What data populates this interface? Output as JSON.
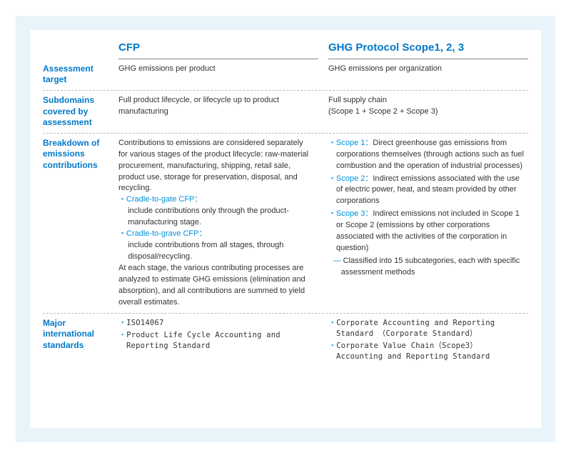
{
  "headers": {
    "cfp": "CFP",
    "ghg": "GHG Protocol Scope1, 2, 3"
  },
  "rows": {
    "assessment": {
      "label": "Assessment target",
      "cfp": "GHG emissions per product",
      "ghg": "GHG emissions per organization"
    },
    "subdomains": {
      "label": "Subdomains covered by assessment",
      "cfp": "Full product lifecycle, or lifecycle up to product manufacturing",
      "ghg_a": "Full supply chain",
      "ghg_b": "(Scope 1 + Scope 2 + Scope 3)"
    },
    "breakdown": {
      "label": "Breakdown of emissions contributions",
      "cfp_intro": "Contributions to emissions are considered separately for various stages of the product lifecycle: raw-material procurement, manufacturing, shipping, retail sale, product use, storage for preservation, disposal, and recycling.",
      "cfp_gate_term": "・Cradle-to-gate CFP：",
      "cfp_gate_desc": "include contributions only through the product-manufacturing stage.",
      "cfp_grave_term": "・Cradle-to-grave CFP：",
      "cfp_grave_desc": "include contributions from all stages, through disposal/recycling.",
      "cfp_outro": "At each stage, the various contributing processes are analyzed to estimate GHG emissions (elimination and absorption), and all contributions are summed to yield overall estimates.",
      "ghg_s1_lead": "・Scope 1：",
      "ghg_s1": "Direct greenhouse gas emissions from corporations themselves (through actions such as fuel combustion and the operation of industrial processes)",
      "ghg_s2_lead": "・Scope 2：",
      "ghg_s2": "Indirect emissions associated with the use of electric power, heat, and steam provided by other corporations",
      "ghg_s3_lead": "・Scope 3：",
      "ghg_s3": "Indirect emissions not included in Scope 1 or Scope 2 (emissions by other corporations associated with the activities of the corporation in question)",
      "ghg_s3_sub": "Classified into 15 subcategories, each with specific assessment methods"
    },
    "standards": {
      "label": "Major international standards",
      "cfp_1": "ISO14067",
      "cfp_2": "Product Life Cycle Accounting and Reporting Standard",
      "ghg_1": "Corporate Accounting and Reporting Standard （Corporate Standard）",
      "ghg_2": "Corporate Value Chain（Scope3） Accounting and Reporting Standard"
    }
  }
}
